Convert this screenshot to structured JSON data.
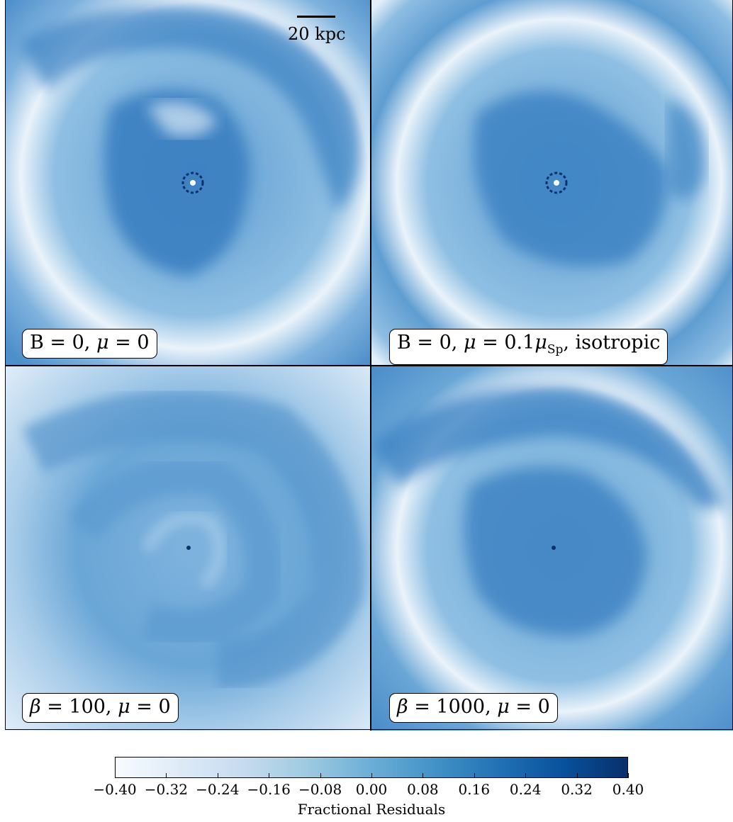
{
  "panels": [
    {
      "label_prefix": "B",
      "label_rest": " = 0, ",
      "mu_sym": "μ",
      "mu_rest": " = 0",
      "structure": "ring"
    },
    {
      "label_prefix": "B",
      "label_rest": " = 0, ",
      "mu_sym": "μ",
      "mu_rest": " = 0.1",
      "mu_sub_sym": "μ",
      "mu_sub": "Sp",
      "suffix": ", isotropic",
      "structure": "ring"
    },
    {
      "label_prefix": "β",
      "label_rest": " = 100, ",
      "mu_sym": "μ",
      "mu_rest": " = 0",
      "structure": "spiral"
    },
    {
      "label_prefix": "β",
      "label_rest": " = 1000, ",
      "mu_sym": "μ",
      "mu_rest": " = 0",
      "structure": "ring"
    }
  ],
  "scalebar": {
    "label": "20 kpc"
  },
  "colorbar": {
    "title": "Fractional Residuals",
    "ticks": [
      "−0.40",
      "−0.32",
      "−0.24",
      "−0.16",
      "−0.08",
      "0.00",
      "0.08",
      "0.16",
      "0.24",
      "0.32",
      "0.40"
    ],
    "range": [
      -0.4,
      0.4
    ],
    "colormap": "Blues"
  },
  "colors": {
    "high": "#2e73b8",
    "mid": "#6aa3d3",
    "low": "#e6f0fa",
    "core": "#08306b"
  }
}
